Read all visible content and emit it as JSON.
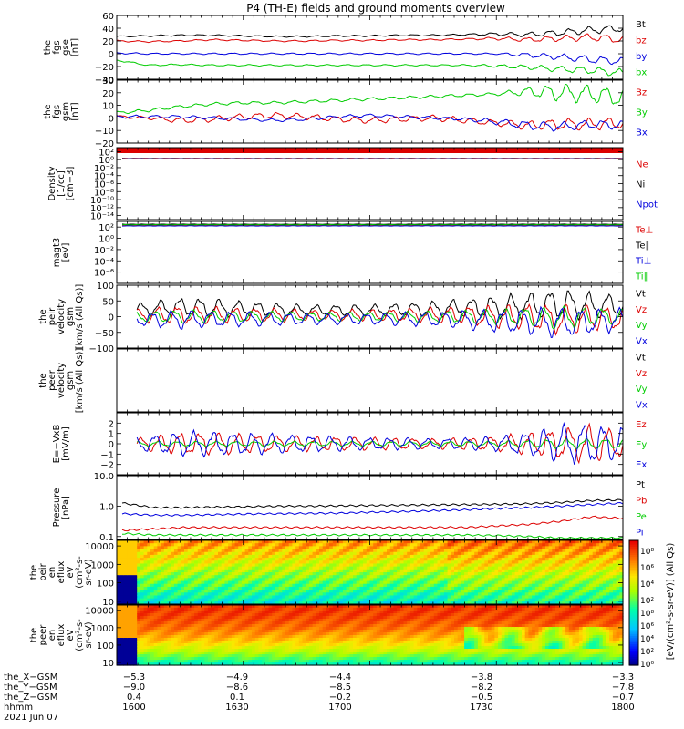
{
  "title": "P4 (TH-E) fields and ground moments overview",
  "colors": {
    "black": "#000000",
    "red": "#dd0000",
    "green": "#00cc00",
    "blue": "#0000dd"
  },
  "chart_data": [
    {
      "type": "line",
      "panel": "fgs-gse",
      "ylabel": [
        "the",
        "fgs",
        "gse",
        "[nT]"
      ],
      "ylim": [
        -40,
        60
      ],
      "yticks": [
        "60",
        "40",
        "20",
        "0",
        "−20",
        "−40"
      ],
      "ytick_values": [
        60,
        40,
        20,
        0,
        -20,
        -40
      ],
      "series": [
        {
          "name": "Bt",
          "color": "black",
          "base": [
            27,
            28,
            29,
            29,
            28,
            27,
            27,
            28,
            28,
            29,
            29,
            30,
            31,
            30,
            33,
            37,
            40
          ],
          "amp": [
            1,
            1,
            1,
            1,
            1,
            1,
            1,
            1,
            1,
            1,
            1,
            1,
            2,
            3,
            4,
            5,
            5
          ]
        },
        {
          "name": "bz",
          "color": "red",
          "base": [
            20,
            19,
            20,
            22,
            21,
            20,
            20,
            21,
            21,
            22,
            22,
            23,
            24,
            22,
            24,
            26,
            22
          ],
          "amp": [
            1,
            1,
            1,
            1,
            1,
            1,
            1,
            1,
            1,
            1,
            1,
            1,
            2,
            3,
            4,
            5,
            5
          ]
        },
        {
          "name": "by",
          "color": "blue",
          "base": [
            1,
            0,
            0,
            0,
            0,
            0,
            0,
            0,
            0,
            0,
            0,
            0,
            0,
            -2,
            -5,
            -9,
            -12
          ],
          "amp": [
            1,
            1,
            1,
            1,
            1,
            1,
            1,
            1,
            1,
            1,
            1,
            1,
            1,
            3,
            4,
            5,
            5
          ]
        },
        {
          "name": "bx",
          "color": "green",
          "base": [
            -10,
            -18,
            -17,
            -18,
            -18,
            -18,
            -18,
            -18,
            -18,
            -18,
            -18,
            -18,
            -19,
            -21,
            -24,
            -26,
            -30
          ],
          "amp": [
            1,
            1,
            1,
            1,
            1,
            1,
            1,
            1,
            1,
            1,
            1,
            1,
            2,
            3,
            4,
            5,
            5
          ]
        }
      ]
    },
    {
      "type": "line",
      "panel": "fgs-gsm",
      "ylabel": [
        "the",
        "fgs",
        "gsm",
        "[nT]"
      ],
      "ylim": [
        -20,
        30
      ],
      "yticks": [
        "30",
        "20",
        "10",
        "0",
        "−10",
        "−20"
      ],
      "ytick_values": [
        30,
        20,
        10,
        0,
        -10,
        -20
      ],
      "series": [
        {
          "name": "Bz",
          "color": "red",
          "base": [
            1,
            0,
            -2,
            -1,
            1,
            2,
            1,
            -1,
            -2,
            -1,
            0,
            -2,
            -4,
            -6,
            -5,
            -5,
            -4
          ],
          "amp": [
            1,
            1,
            2,
            2,
            2,
            2,
            2,
            2,
            2,
            2,
            2,
            2,
            2,
            3,
            4,
            4,
            4
          ]
        },
        {
          "name": "By",
          "color": "green",
          "base": [
            4,
            6,
            9,
            11,
            12,
            12,
            13,
            14,
            15,
            16,
            17,
            18,
            19,
            21,
            20,
            19,
            16
          ],
          "amp": [
            1,
            1,
            1,
            1,
            1,
            1,
            1,
            1,
            1,
            1,
            1,
            1,
            1,
            3,
            6,
            6,
            6
          ]
        },
        {
          "name": "Bx",
          "color": "blue",
          "base": [
            1,
            1,
            1,
            0,
            -1,
            -2,
            -1,
            1,
            2,
            1,
            0,
            -1,
            -3,
            -6,
            -7,
            -5,
            -6
          ],
          "amp": [
            1,
            1,
            1,
            1,
            1,
            1,
            1,
            1,
            1,
            1,
            1,
            1,
            2,
            3,
            3,
            3,
            3
          ]
        }
      ]
    },
    {
      "type": "line",
      "panel": "density",
      "ylabel": [
        "Density",
        "[1/cc]",
        "[cm−3]"
      ],
      "scale": "log",
      "ylim": [
        1e-15,
        1000
      ],
      "yticks": [
        "10²",
        "10⁰",
        "10⁻²",
        "10⁻⁴",
        "10⁻⁶",
        "10⁻⁸",
        "10⁻¹⁰",
        "10⁻¹²",
        "10⁻¹⁴"
      ],
      "ytick_values": [
        2,
        0,
        -2,
        -4,
        -6,
        -8,
        -10,
        -12,
        -14
      ],
      "series": [
        {
          "name": "Ne",
          "color": "red",
          "log10": 0.3
        },
        {
          "name": "Ni",
          "color": "black",
          "log10": 0.25
        },
        {
          "name": "Npot",
          "color": "blue",
          "log10": 0.2
        }
      ]
    },
    {
      "type": "line",
      "panel": "temperature",
      "ylabel": [
        "magt3",
        "[eV]"
      ],
      "scale": "log",
      "ylim": [
        1e-08,
        1000
      ],
      "yticks": [
        "10²",
        "10⁰",
        "10⁻²",
        "10⁻⁴",
        "10⁻⁶"
      ],
      "ytick_values": [
        2,
        0,
        -2,
        -4,
        -6
      ],
      "series": [
        {
          "name": "Te⊥",
          "color": "red",
          "log10": 2.3
        },
        {
          "name": "Te∥",
          "color": "black",
          "log10": 2.5
        },
        {
          "name": "Ti⊥",
          "color": "blue",
          "log10": 2.2
        },
        {
          "name": "Ti∥",
          "color": "green",
          "log10": 2.4
        }
      ]
    },
    {
      "type": "line",
      "panel": "peir-velocity",
      "ylabel": [
        "the",
        "peir",
        "velocity",
        "gsm",
        "[km/s (All Qs)]"
      ],
      "ylim": [
        -100,
        100
      ],
      "yticks": [
        "100",
        "50",
        "0",
        "−50",
        "−100"
      ],
      "ytick_values": [
        100,
        50,
        0,
        -50,
        -100
      ],
      "series": [
        {
          "name": "Vt",
          "color": "black",
          "base": [
            15,
            25,
            30,
            28,
            25,
            22,
            20,
            20,
            20,
            22,
            25,
            28,
            30,
            35,
            40,
            35,
            35
          ],
          "amp": [
            10,
            20,
            25,
            25,
            20,
            18,
            15,
            15,
            15,
            18,
            20,
            25,
            30,
            35,
            40,
            35,
            30
          ]
        },
        {
          "name": "Vz",
          "color": "red",
          "base": [
            0,
            5,
            5,
            5,
            5,
            5,
            5,
            5,
            5,
            5,
            5,
            5,
            0,
            0,
            -10,
            -5,
            -5
          ],
          "amp": [
            10,
            20,
            25,
            22,
            20,
            18,
            15,
            15,
            15,
            18,
            20,
            25,
            30,
            35,
            40,
            35,
            30
          ]
        },
        {
          "name": "Vy",
          "color": "green",
          "base": [
            0,
            0,
            0,
            0,
            0,
            0,
            0,
            0,
            0,
            0,
            0,
            0,
            0,
            0,
            -5,
            0,
            0
          ],
          "amp": [
            8,
            15,
            18,
            16,
            15,
            14,
            12,
            12,
            12,
            14,
            15,
            18,
            20,
            25,
            30,
            25,
            20
          ]
        },
        {
          "name": "Vx",
          "color": "blue",
          "base": [
            -5,
            -10,
            -10,
            -8,
            -8,
            -8,
            -8,
            -8,
            -8,
            -8,
            -8,
            -10,
            -15,
            -15,
            -20,
            -15,
            -10
          ],
          "amp": [
            10,
            20,
            25,
            22,
            20,
            18,
            15,
            15,
            15,
            18,
            20,
            25,
            30,
            35,
            40,
            35,
            30
          ]
        }
      ]
    },
    {
      "type": "line",
      "panel": "peer-velocity",
      "ylabel": [
        "the",
        "peer",
        "velocity",
        "gsm",
        "[km/s (All Qs)]"
      ],
      "ylim": [
        -100,
        100
      ],
      "yticks": [],
      "ytick_values": [],
      "series": [
        {
          "name": "Vt",
          "color": "black"
        },
        {
          "name": "Vz",
          "color": "red"
        },
        {
          "name": "Vy",
          "color": "green"
        },
        {
          "name": "Vx",
          "color": "blue"
        }
      ]
    },
    {
      "type": "line",
      "panel": "efield",
      "ylabel": [
        "E=−VxB",
        "[mV/m]"
      ],
      "ylim": [
        -3,
        3
      ],
      "yticks": [
        "2",
        "1",
        "0",
        "−1",
        "−2"
      ],
      "ytick_values": [
        2,
        1,
        0,
        -1,
        -2
      ],
      "series": [
        {
          "name": "Ez",
          "color": "red",
          "base": [
            0,
            0,
            0,
            0,
            0,
            0,
            0,
            0,
            0,
            0,
            0,
            0,
            0,
            0,
            0,
            0,
            0
          ],
          "amp": [
            0.2,
            0.6,
            0.9,
            0.9,
            0.8,
            0.7,
            0.6,
            0.6,
            0.5,
            0.5,
            0.4,
            0.5,
            0.6,
            0.9,
            1.3,
            1.5,
            1.2
          ]
        },
        {
          "name": "Ey",
          "color": "green",
          "base": [
            0,
            0,
            0,
            0,
            0,
            0,
            0,
            0,
            0,
            0,
            0,
            0,
            0,
            0,
            0,
            0,
            0
          ],
          "amp": [
            0.1,
            0.2,
            0.2,
            0.2,
            0.2,
            0.2,
            0.2,
            0.2,
            0.2,
            0.2,
            0.2,
            0.2,
            0.2,
            0.3,
            0.4,
            0.4,
            0.4
          ]
        },
        {
          "name": "Ex",
          "color": "blue",
          "base": [
            0,
            0,
            0,
            0,
            0,
            0,
            0,
            0,
            0,
            0,
            0,
            0,
            0,
            0,
            0,
            0,
            0
          ],
          "amp": [
            0.2,
            0.7,
            1,
            1,
            0.9,
            0.8,
            0.7,
            0.6,
            0.5,
            0.5,
            0.4,
            0.5,
            0.6,
            1,
            1.5,
            1.7,
            1.3
          ]
        }
      ]
    },
    {
      "type": "line",
      "panel": "pressure",
      "ylabel": [
        "Pressure",
        "[nPa]"
      ],
      "scale": "log",
      "ylim": [
        0.08,
        10
      ],
      "yticks": [
        "10.0",
        "1.0",
        "0.1"
      ],
      "ytick_values": [
        1,
        0,
        -1
      ],
      "series": [
        {
          "name": "Pt",
          "color": "black",
          "log10": [
            0.1,
            -0.05,
            -0.05,
            -0.03,
            -0.02,
            0,
            0,
            0.01,
            0.02,
            0.03,
            0.04,
            0.05,
            0.06,
            0.08,
            0.12,
            0.18,
            0.2
          ]
        },
        {
          "name": "Pb",
          "color": "red",
          "log10": [
            -0.8,
            -0.75,
            -0.7,
            -0.7,
            -0.7,
            -0.7,
            -0.7,
            -0.7,
            -0.7,
            -0.7,
            -0.7,
            -0.7,
            -0.65,
            -0.6,
            -0.5,
            -0.35,
            -0.4
          ]
        },
        {
          "name": "Pe",
          "color": "green",
          "log10": [
            -0.9,
            -0.95,
            -0.95,
            -0.95,
            -0.95,
            -0.95,
            -0.95,
            -0.95,
            -0.95,
            -0.95,
            -0.95,
            -0.95,
            -0.97,
            -1,
            -1.05,
            -1.05,
            -1.05
          ]
        },
        {
          "name": "Pi",
          "color": "blue",
          "log10": [
            -0.25,
            -0.3,
            -0.3,
            -0.28,
            -0.26,
            -0.25,
            -0.24,
            -0.23,
            -0.2,
            -0.18,
            -0.15,
            -0.12,
            -0.08,
            -0.05,
            0,
            0.05,
            0.1
          ]
        }
      ]
    },
    {
      "type": "heatmap",
      "panel": "peir-eflux",
      "ylabel": [
        "the",
        "peir",
        "en",
        "eflux",
        "eV",
        "(cm²-s-",
        "sr-eV)"
      ],
      "scale": "log",
      "ylim": [
        7,
        20000
      ],
      "yticks": [
        "10000",
        "1000",
        "100",
        "10"
      ],
      "ytick_values": [
        4,
        3,
        2,
        1
      ]
    },
    {
      "type": "heatmap",
      "panel": "peer-eflux",
      "ylabel": [
        "the",
        "peer",
        "en",
        "eflux",
        "eV",
        "(cm²-s-",
        "sr-eV)"
      ],
      "scale": "log",
      "ylim": [
        7,
        20000
      ],
      "yticks": [
        "10000",
        "1000",
        "100",
        "10"
      ],
      "ytick_values": [
        4,
        3,
        2,
        1
      ]
    }
  ],
  "colorbar": {
    "label": "[eV/(cm²-s-sr-eV)] (All Qs)",
    "ticks_top": [
      "10⁸",
      "10⁶",
      "10⁴",
      "10²"
    ],
    "ticks_bottom": [
      "10⁸",
      "10⁶",
      "10⁴",
      "10²",
      "10⁰"
    ]
  },
  "xaxis": {
    "rows": [
      {
        "label": "the_X−GSM",
        "values": [
          "−5.3",
          "−4.9",
          "−4.4",
          "−3.8",
          "−3.3"
        ]
      },
      {
        "label": "the_Y−GSM",
        "values": [
          "−9.0",
          "−8.6",
          "−8.5",
          "−8.2",
          "−7.8"
        ]
      },
      {
        "label": "the_Z−GSM",
        "values": [
          "0.4",
          "0.1",
          "−0.2",
          "−0.5",
          "−0.7"
        ]
      },
      {
        "label": "hhmm",
        "values": [
          "1600",
          "1630",
          "1700",
          "1730",
          "1800"
        ]
      }
    ],
    "date": "2021 Jun 07"
  }
}
